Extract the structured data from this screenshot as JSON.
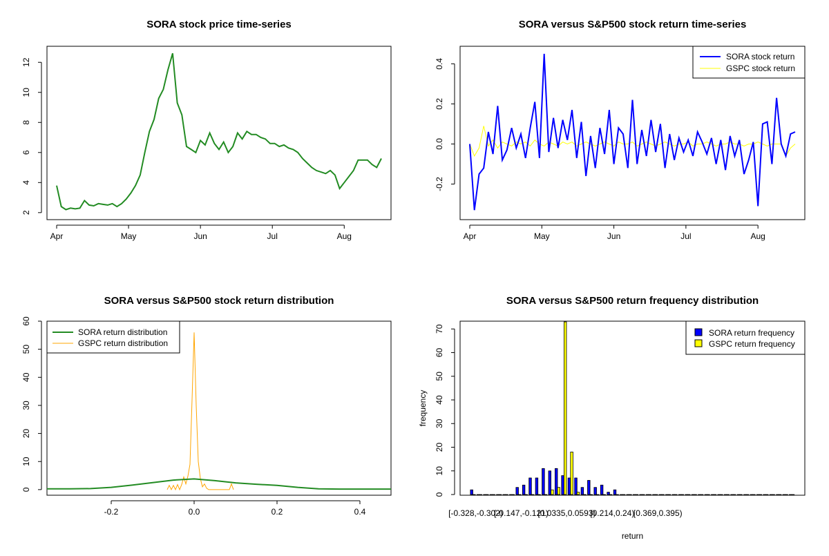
{
  "chart_data": [
    {
      "type": "line",
      "title": "SORA stock price time-series",
      "xlabel": "",
      "ylabel": "",
      "x_tick_labels": [
        "Apr",
        "May",
        "Jun",
        "Jul",
        "Aug"
      ],
      "y_ticks": [
        2,
        4,
        6,
        8,
        10,
        12
      ],
      "xlim": [
        0,
        140
      ],
      "ylim": [
        1.9,
        12.7
      ],
      "colors": {
        "line": "#228B22"
      },
      "series": [
        {
          "x": [
            0,
            2,
            4,
            6,
            8,
            10,
            12,
            14,
            16,
            18,
            20,
            22,
            24,
            26,
            28,
            30,
            32,
            34,
            36,
            38,
            40,
            42,
            44,
            46,
            48,
            50,
            52,
            54,
            56,
            58,
            60,
            62,
            64,
            66,
            68,
            70,
            72,
            74,
            76,
            78,
            80,
            82,
            84,
            86,
            88,
            90,
            92,
            94,
            96,
            98,
            100,
            102,
            104,
            106,
            108,
            110,
            112,
            114,
            116,
            118,
            120,
            122,
            124,
            126,
            128,
            130,
            132,
            134,
            136,
            138,
            140
          ],
          "values": [
            3.8,
            2.4,
            2.2,
            2.3,
            2.25,
            2.3,
            2.8,
            2.5,
            2.45,
            2.6,
            2.55,
            2.5,
            2.6,
            2.4,
            2.6,
            2.9,
            3.3,
            3.8,
            4.5,
            6.0,
            7.4,
            8.2,
            9.6,
            10.2,
            11.5,
            12.6,
            9.3,
            8.5,
            6.4,
            6.2,
            6.0,
            6.8,
            6.5,
            7.3,
            6.6,
            6.2,
            6.7,
            6.0,
            6.4,
            7.3,
            6.9,
            7.4,
            7.2,
            7.2,
            7.0,
            6.9,
            6.6,
            6.6,
            6.4,
            6.5,
            6.3,
            6.2,
            6.0,
            5.6,
            5.3,
            5.0,
            4.8,
            4.7,
            4.6,
            4.8,
            4.5,
            3.6,
            4.0,
            4.4,
            4.8,
            5.5,
            5.5,
            5.5,
            5.2,
            5.0,
            5.6
          ]
        }
      ]
    },
    {
      "type": "line",
      "title": "SORA versus S&P500 stock return time-series",
      "xlabel": "",
      "ylabel": "",
      "x_tick_labels": [
        "Apr",
        "May",
        "Jun",
        "Jul",
        "Aug"
      ],
      "y_ticks": [
        -0.2,
        0.0,
        0.2,
        0.4
      ],
      "y_tick_labels": [
        "-0.2",
        "0.0",
        "0.2",
        "0.4"
      ],
      "xlim": [
        0,
        140
      ],
      "ylim": [
        -0.35,
        0.46
      ],
      "legend": {
        "placement": "top-right",
        "entries": [
          "SORA stock return",
          "GSPC stock return"
        ]
      },
      "series": [
        {
          "name": "SORA stock return",
          "color": "#0000FF",
          "x": [
            0,
            2,
            4,
            6,
            8,
            10,
            12,
            14,
            16,
            18,
            20,
            22,
            24,
            26,
            28,
            30,
            32,
            34,
            36,
            38,
            40,
            42,
            44,
            46,
            48,
            50,
            52,
            54,
            56,
            58,
            60,
            62,
            64,
            66,
            68,
            70,
            72,
            74,
            76,
            78,
            80,
            82,
            84,
            86,
            88,
            90,
            92,
            94,
            96,
            98,
            100,
            102,
            104,
            106,
            108,
            110,
            112,
            114,
            116,
            118,
            120,
            122,
            124,
            126,
            128,
            130,
            132,
            134,
            136,
            138,
            140
          ],
          "values": [
            0.0,
            -0.33,
            -0.15,
            -0.12,
            0.06,
            -0.05,
            0.19,
            -0.08,
            -0.03,
            0.08,
            -0.02,
            0.05,
            -0.07,
            0.08,
            0.21,
            -0.07,
            0.45,
            -0.04,
            0.13,
            -0.02,
            0.12,
            0.02,
            0.17,
            -0.07,
            0.11,
            -0.16,
            0.04,
            -0.12,
            0.08,
            -0.05,
            0.17,
            -0.1,
            0.08,
            0.05,
            -0.12,
            0.22,
            -0.1,
            0.07,
            -0.06,
            0.12,
            -0.04,
            0.1,
            -0.12,
            0.05,
            -0.08,
            0.03,
            -0.04,
            0.02,
            -0.06,
            0.06,
            0.01,
            -0.05,
            0.03,
            -0.1,
            0.02,
            -0.13,
            0.04,
            -0.06,
            0.02,
            -0.15,
            -0.08,
            0.01,
            -0.31,
            0.1,
            0.11,
            -0.1,
            0.23,
            0.0,
            -0.06,
            0.05,
            0.06
          ]
        },
        {
          "name": "GSPC stock return",
          "color": "#FFFF00",
          "x": [
            0,
            2,
            4,
            6,
            8,
            10,
            12,
            14,
            16,
            18,
            20,
            22,
            24,
            26,
            28,
            30,
            32,
            34,
            36,
            38,
            40,
            42,
            44,
            46,
            48,
            50,
            52,
            54,
            56,
            58,
            60,
            62,
            64,
            66,
            68,
            70,
            72,
            74,
            76,
            78,
            80,
            82,
            84,
            86,
            88,
            90,
            92,
            94,
            96,
            98,
            100,
            102,
            104,
            106,
            108,
            110,
            112,
            114,
            116,
            118,
            120,
            122,
            124,
            126,
            128,
            130,
            132,
            134,
            136,
            138,
            140
          ],
          "values": [
            0.0,
            -0.06,
            -0.02,
            0.09,
            -0.01,
            0.02,
            -0.02,
            0.01,
            0.0,
            -0.01,
            0.01,
            0.0,
            0.01,
            -0.01,
            0.02,
            0.0,
            -0.01,
            0.01,
            0.0,
            -0.01,
            0.01,
            0.0,
            0.01,
            -0.01,
            0.0,
            0.01,
            0.0,
            -0.01,
            0.0,
            0.01,
            0.0,
            -0.01,
            0.01,
            0.0,
            0.0,
            0.01,
            -0.01,
            0.0,
            0.01,
            0.0,
            -0.01,
            0.0,
            0.01,
            0.0,
            -0.01,
            0.0,
            0.0,
            0.01,
            -0.01,
            0.0,
            0.0,
            0.01,
            0.0,
            -0.01,
            0.0,
            0.0,
            0.01,
            0.0,
            0.0,
            -0.01,
            0.0,
            0.0,
            0.01,
            0.0,
            -0.01,
            0.0,
            0.0,
            0.0,
            -0.06,
            -0.02,
            0.0
          ]
        }
      ]
    },
    {
      "type": "line",
      "title": "SORA versus S&P500 stock return distribution",
      "xlabel": "",
      "ylabel": "",
      "x_ticks": [
        -0.2,
        0.0,
        0.2,
        0.4
      ],
      "x_tick_labels": [
        "-0.2",
        "0.0",
        "0.2",
        "0.4"
      ],
      "y_ticks": [
        0,
        10,
        20,
        30,
        40,
        50,
        60
      ],
      "xlim": [
        -0.355,
        0.475
      ],
      "ylim": [
        -2,
        60
      ],
      "legend": {
        "placement": "top-left",
        "entries": [
          "SORA return distribution",
          "GSPC return distribution"
        ]
      },
      "series": [
        {
          "name": "SORA return distribution",
          "color": "#228B22",
          "x": [
            -0.355,
            -0.3,
            -0.25,
            -0.2,
            -0.15,
            -0.1,
            -0.05,
            0.0,
            0.05,
            0.1,
            0.15,
            0.2,
            0.25,
            0.3,
            0.35,
            0.4,
            0.475
          ],
          "values": [
            0.3,
            0.3,
            0.35,
            0.8,
            1.6,
            2.5,
            3.4,
            3.8,
            3.2,
            2.4,
            1.9,
            1.5,
            0.8,
            0.3,
            0.2,
            0.2,
            0.2
          ]
        },
        {
          "name": "GSPC return distribution",
          "color": "#FFA500",
          "x": [
            -0.065,
            -0.06,
            -0.055,
            -0.05,
            -0.045,
            -0.04,
            -0.035,
            -0.03,
            -0.025,
            -0.02,
            -0.015,
            -0.01,
            -0.005,
            0.0,
            0.005,
            0.01,
            0.015,
            0.02,
            0.025,
            0.03,
            0.035,
            0.04,
            0.045,
            0.05,
            0.055,
            0.06,
            0.065,
            0.07,
            0.075,
            0.08,
            0.085,
            0.09,
            0.095
          ],
          "values": [
            0,
            1.5,
            0,
            1.5,
            0,
            1.8,
            0,
            1.8,
            4.5,
            2.0,
            4.8,
            9.0,
            32.0,
            56.0,
            30.0,
            10.0,
            4.0,
            1.0,
            2.0,
            0.5,
            0,
            0,
            0,
            0,
            0,
            0,
            0,
            0,
            0,
            0,
            0,
            2.0,
            0
          ]
        }
      ]
    },
    {
      "type": "bar",
      "title": "SORA versus S&P500 return frequency distribution",
      "xlabel": "return",
      "ylabel": "frequency",
      "x_tick_labels": [
        "[-0.328,-0.302)",
        "[-0.147,-0.121)",
        "[0.0335,0.0593)",
        "[0.214,0.24)",
        "[0.369,0.395)"
      ],
      "y_ticks": [
        0,
        10,
        20,
        30,
        40,
        50,
        60,
        70
      ],
      "ylim": [
        0,
        73
      ],
      "legend": {
        "placement": "top-right",
        "entries": [
          "SORA return frequency",
          "GSPC return frequency"
        ]
      },
      "series": [
        {
          "name": "SORA return frequency",
          "color": "#0000FF",
          "values": [
            2,
            0,
            0,
            0,
            0,
            0,
            0,
            3,
            4,
            7,
            7,
            11,
            10,
            11,
            8,
            7,
            7,
            3,
            6,
            3,
            4,
            1,
            2,
            0,
            0,
            0,
            0,
            0,
            0,
            0,
            0,
            0,
            0,
            0,
            0,
            0,
            0,
            0,
            0,
            0,
            0,
            0,
            0,
            0,
            0,
            0,
            0,
            0,
            0,
            0
          ]
        },
        {
          "name": "GSPC return frequency",
          "color": "#FFFF00",
          "values": [
            0,
            0,
            0,
            0,
            0,
            0,
            0,
            0,
            0,
            0,
            0,
            0,
            2,
            3,
            73,
            18,
            1,
            0,
            0,
            0,
            0,
            0,
            0,
            0,
            0,
            0,
            0,
            0,
            0,
            0,
            0,
            0,
            0,
            0,
            0,
            0,
            0,
            0,
            0,
            0,
            0,
            0,
            0,
            0,
            0,
            0,
            0,
            0,
            0,
            0
          ]
        }
      ]
    }
  ]
}
